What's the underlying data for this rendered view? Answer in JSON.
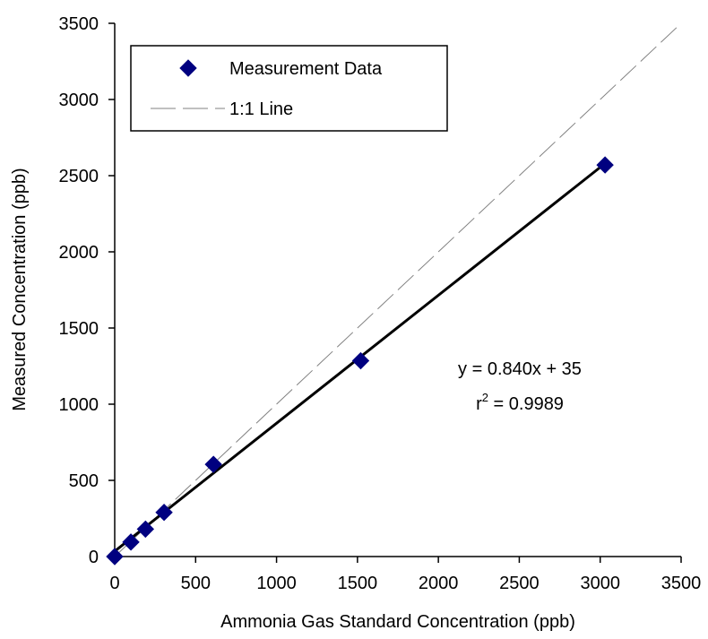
{
  "chart_data": {
    "type": "scatter",
    "xlabel": "Ammonia Gas Standard Concentration (ppb)",
    "ylabel": "Measured Concentration (ppb)",
    "xlim": [
      0,
      3500
    ],
    "ylim": [
      0,
      3500
    ],
    "xticks": [
      "0",
      "500",
      "1000",
      "1500",
      "2000",
      "2500",
      "3000",
      "3500"
    ],
    "yticks": [
      "0",
      "500",
      "1000",
      "1500",
      "2000",
      "2500",
      "3000",
      "3500"
    ],
    "grid": false,
    "legend": {
      "placement": "top-left",
      "items": [
        {
          "label": "Measurement Data",
          "marker": "diamond"
        },
        {
          "label": "1:1 Line",
          "marker": "dashed-line"
        }
      ]
    },
    "series": [
      {
        "name": "Measurement Data",
        "color": "#000080",
        "marker": "diamond",
        "points": [
          {
            "x": 0,
            "y": 0
          },
          {
            "x": 100,
            "y": 95
          },
          {
            "x": 190,
            "y": 180
          },
          {
            "x": 305,
            "y": 290
          },
          {
            "x": 610,
            "y": 605
          },
          {
            "x": 1520,
            "y": 1285
          },
          {
            "x": 3030,
            "y": 2570
          }
        ]
      },
      {
        "name": "1:1 Line",
        "color": "#808080",
        "style": "dashed",
        "points": [
          {
            "x": 0,
            "y": 0
          },
          {
            "x": 3500,
            "y": 3500
          }
        ]
      }
    ],
    "fit_line": {
      "slope": 0.84,
      "intercept": 35,
      "x_range": [
        0,
        3030
      ],
      "color": "#000000"
    },
    "annotations": {
      "equation": "y = 0.840x + 35",
      "r_prefix": "r",
      "r_exp": "2",
      "r_value": " = 0.9989"
    }
  }
}
